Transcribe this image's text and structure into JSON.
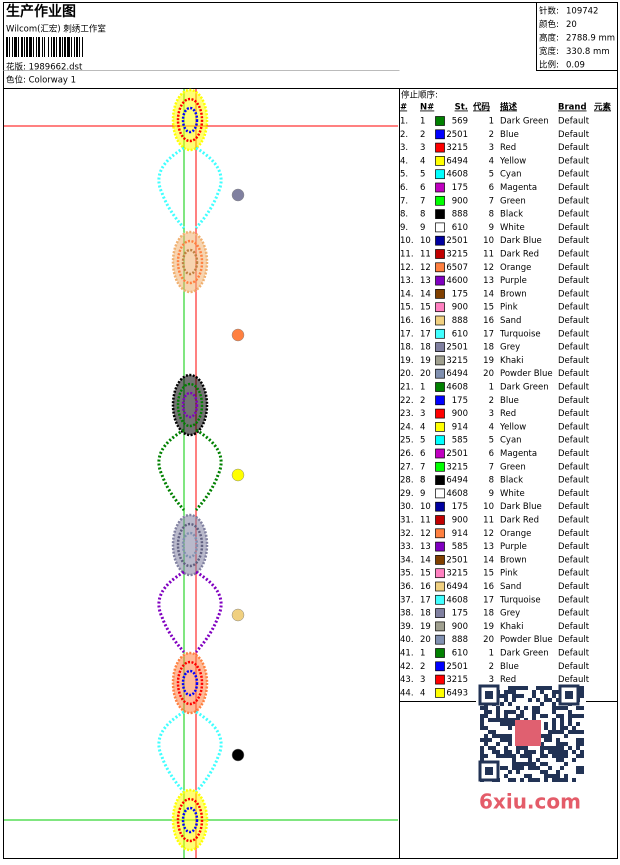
{
  "header": {
    "title": "生产作业图",
    "subtitle": "Wilcom(汇宏) 刺绣工作室",
    "design": "花版: 1989662.dst",
    "colorway": "色位: Colorway 1"
  },
  "stats": [
    {
      "label": "针数:",
      "value": "109742"
    },
    {
      "label": "颜色:",
      "value": "20"
    },
    {
      "label": "高度:",
      "value": "2788.9 mm"
    },
    {
      "label": "宽度:",
      "value": "330.8 mm"
    },
    {
      "label": "比例:",
      "value": "0.09"
    }
  ],
  "table": {
    "caption": "停止顺序:",
    "columns": [
      "#",
      "N#",
      "St.",
      "代码",
      "描述",
      "Brand",
      "元素"
    ],
    "rows": [
      {
        "index": "1.",
        "needle": "1",
        "color": "#008000",
        "stitches": "569",
        "code": "1",
        "desc": "Dark Green",
        "brand": "Default"
      },
      {
        "index": "2.",
        "needle": "2",
        "color": "#0000ff",
        "stitches": "2501",
        "code": "2",
        "desc": "Blue",
        "brand": "Default"
      },
      {
        "index": "3.",
        "needle": "3",
        "color": "#ff0000",
        "stitches": "3215",
        "code": "3",
        "desc": "Red",
        "brand": "Default"
      },
      {
        "index": "4.",
        "needle": "4",
        "color": "#ffff00",
        "stitches": "6494",
        "code": "4",
        "desc": "Yellow",
        "brand": "Default"
      },
      {
        "index": "5.",
        "needle": "5",
        "color": "#00ffff",
        "stitches": "4608",
        "code": "5",
        "desc": "Cyan",
        "brand": "Default"
      },
      {
        "index": "6.",
        "needle": "6",
        "color": "#c000c0",
        "stitches": "175",
        "code": "6",
        "desc": "Magenta",
        "brand": "Default"
      },
      {
        "index": "7.",
        "needle": "7",
        "color": "#00ff00",
        "stitches": "900",
        "code": "7",
        "desc": "Green",
        "brand": "Default"
      },
      {
        "index": "8.",
        "needle": "8",
        "color": "#000000",
        "stitches": "888",
        "code": "8",
        "desc": "Black",
        "brand": "Default"
      },
      {
        "index": "9.",
        "needle": "9",
        "color": "#ffffff",
        "stitches": "610",
        "code": "9",
        "desc": "White",
        "brand": "Default"
      },
      {
        "index": "10.",
        "needle": "10",
        "color": "#0000a0",
        "stitches": "2501",
        "code": "10",
        "desc": "Dark Blue",
        "brand": "Default"
      },
      {
        "index": "11.",
        "needle": "11",
        "color": "#c00000",
        "stitches": "3215",
        "code": "11",
        "desc": "Dark Red",
        "brand": "Default"
      },
      {
        "index": "12.",
        "needle": "12",
        "color": "#ff8040",
        "stitches": "6507",
        "code": "12",
        "desc": "Orange",
        "brand": "Default"
      },
      {
        "index": "13.",
        "needle": "13",
        "color": "#8000c0",
        "stitches": "4600",
        "code": "13",
        "desc": "Purple",
        "brand": "Default"
      },
      {
        "index": "14.",
        "needle": "14",
        "color": "#804000",
        "stitches": "175",
        "code": "14",
        "desc": "Brown",
        "brand": "Default"
      },
      {
        "index": "15.",
        "needle": "15",
        "color": "#ff80c0",
        "stitches": "900",
        "code": "15",
        "desc": "Pink",
        "brand": "Default"
      },
      {
        "index": "16.",
        "needle": "16",
        "color": "#f0d080",
        "stitches": "888",
        "code": "16",
        "desc": "Sand",
        "brand": "Default"
      },
      {
        "index": "17.",
        "needle": "17",
        "color": "#40ffff",
        "stitches": "610",
        "code": "17",
        "desc": "Turquoise",
        "brand": "Default"
      },
      {
        "index": "18.",
        "needle": "18",
        "color": "#8080a0",
        "stitches": "2501",
        "code": "18",
        "desc": "Grey",
        "brand": "Default"
      },
      {
        "index": "19.",
        "needle": "19",
        "color": "#a0a090",
        "stitches": "3215",
        "code": "19",
        "desc": "Khaki",
        "brand": "Default"
      },
      {
        "index": "20.",
        "needle": "20",
        "color": "#8090b0",
        "stitches": "6494",
        "code": "20",
        "desc": "Powder Blue",
        "brand": "Default"
      },
      {
        "index": "21.",
        "needle": "1",
        "color": "#008000",
        "stitches": "4608",
        "code": "1",
        "desc": "Dark Green",
        "brand": "Default"
      },
      {
        "index": "22.",
        "needle": "2",
        "color": "#0000ff",
        "stitches": "175",
        "code": "2",
        "desc": "Blue",
        "brand": "Default"
      },
      {
        "index": "23.",
        "needle": "3",
        "color": "#ff0000",
        "stitches": "900",
        "code": "3",
        "desc": "Red",
        "brand": "Default"
      },
      {
        "index": "24.",
        "needle": "4",
        "color": "#ffff00",
        "stitches": "914",
        "code": "4",
        "desc": "Yellow",
        "brand": "Default"
      },
      {
        "index": "25.",
        "needle": "5",
        "color": "#00ffff",
        "stitches": "585",
        "code": "5",
        "desc": "Cyan",
        "brand": "Default"
      },
      {
        "index": "26.",
        "needle": "6",
        "color": "#c000c0",
        "stitches": "2501",
        "code": "6",
        "desc": "Magenta",
        "brand": "Default"
      },
      {
        "index": "27.",
        "needle": "7",
        "color": "#00ff00",
        "stitches": "3215",
        "code": "7",
        "desc": "Green",
        "brand": "Default"
      },
      {
        "index": "28.",
        "needle": "8",
        "color": "#000000",
        "stitches": "6494",
        "code": "8",
        "desc": "Black",
        "brand": "Default"
      },
      {
        "index": "29.",
        "needle": "9",
        "color": "#ffffff",
        "stitches": "4608",
        "code": "9",
        "desc": "White",
        "brand": "Default"
      },
      {
        "index": "30.",
        "needle": "10",
        "color": "#0000a0",
        "stitches": "175",
        "code": "10",
        "desc": "Dark Blue",
        "brand": "Default"
      },
      {
        "index": "31.",
        "needle": "11",
        "color": "#c00000",
        "stitches": "900",
        "code": "11",
        "desc": "Dark Red",
        "brand": "Default"
      },
      {
        "index": "32.",
        "needle": "12",
        "color": "#ff8040",
        "stitches": "914",
        "code": "12",
        "desc": "Orange",
        "brand": "Default"
      },
      {
        "index": "33.",
        "needle": "13",
        "color": "#8000c0",
        "stitches": "585",
        "code": "13",
        "desc": "Purple",
        "brand": "Default"
      },
      {
        "index": "34.",
        "needle": "14",
        "color": "#804000",
        "stitches": "2501",
        "code": "14",
        "desc": "Brown",
        "brand": "Default"
      },
      {
        "index": "35.",
        "needle": "15",
        "color": "#ff80c0",
        "stitches": "3215",
        "code": "15",
        "desc": "Pink",
        "brand": "Default"
      },
      {
        "index": "36.",
        "needle": "16",
        "color": "#f0d080",
        "stitches": "6494",
        "code": "16",
        "desc": "Sand",
        "brand": "Default"
      },
      {
        "index": "37.",
        "needle": "17",
        "color": "#40ffff",
        "stitches": "4608",
        "code": "17",
        "desc": "Turquoise",
        "brand": "Default"
      },
      {
        "index": "38.",
        "needle": "18",
        "color": "#8080a0",
        "stitches": "175",
        "code": "18",
        "desc": "Grey",
        "brand": "Default"
      },
      {
        "index": "39.",
        "needle": "19",
        "color": "#a0a090",
        "stitches": "900",
        "code": "19",
        "desc": "Khaki",
        "brand": "Default"
      },
      {
        "index": "40.",
        "needle": "20",
        "color": "#8090b0",
        "stitches": "888",
        "code": "20",
        "desc": "Powder Blue",
        "brand": "Default"
      },
      {
        "index": "41.",
        "needle": "1",
        "color": "#008000",
        "stitches": "610",
        "code": "1",
        "desc": "Dark Green",
        "brand": "Default"
      },
      {
        "index": "42.",
        "needle": "2",
        "color": "#0000ff",
        "stitches": "2501",
        "code": "2",
        "desc": "Blue",
        "brand": "Default"
      },
      {
        "index": "43.",
        "needle": "3",
        "color": "#ff0000",
        "stitches": "3215",
        "code": "3",
        "desc": "Red",
        "brand": "Default"
      },
      {
        "index": "44.",
        "needle": "4",
        "color": "#ffff00",
        "stitches": "6493"
      }
    ]
  },
  "watermark": "6xiu.com"
}
